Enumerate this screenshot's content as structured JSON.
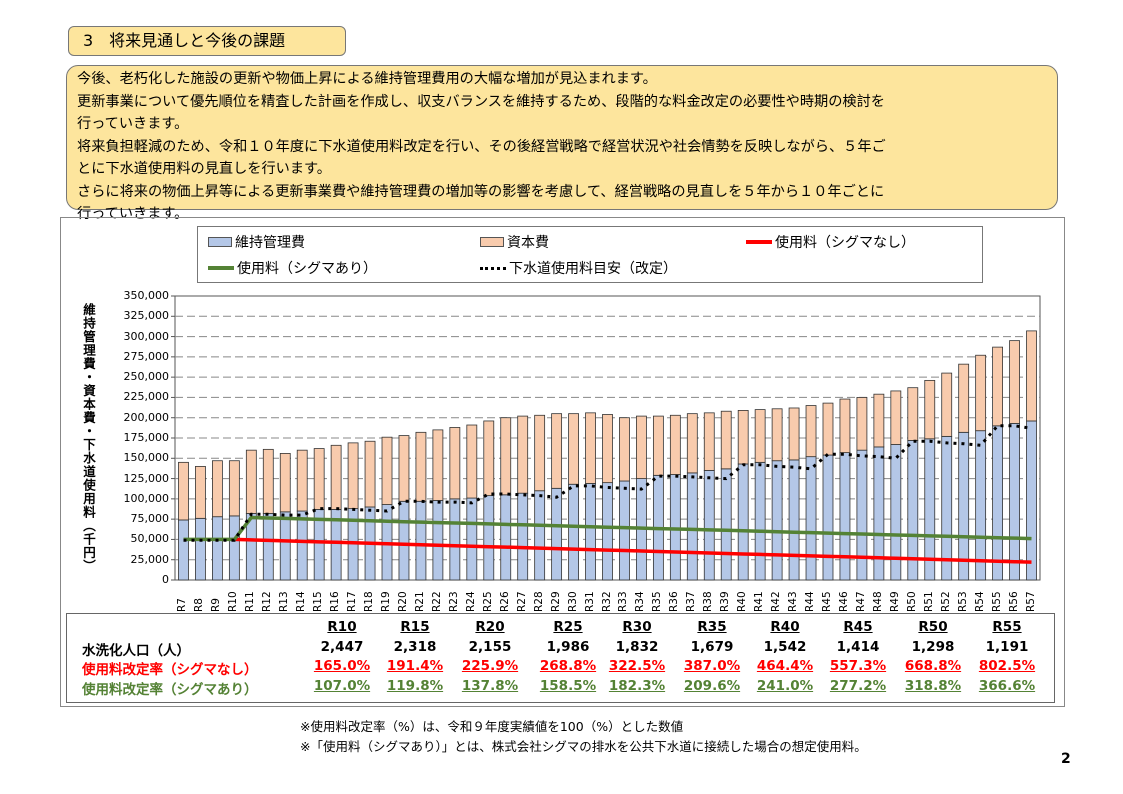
{
  "section_title": "3　将来見通しと今後の課題",
  "summary_lines": [
    "今後、老朽化した施設の更新や物価上昇による維持管理費用の大幅な増加が見込まれます。",
    "更新事業について優先順位を精査した計画を作成し、収支バランスを維持するため、段階的な料金改定の必要性や時期の検討を",
    "行っていきます。",
    "将来負担軽減のため、令和１０年度に下水道使用料改定を行い、その後経営戦略で経営状況や社会情勢を反映しながら、５年ご",
    "とに下水道使用料の見直しを行います。",
    "さらに将来の物価上昇等による更新事業費や維持管理費の増加等の影響を考慮して、経営戦略の見直しを５年から１０年ごとに",
    "行っていきます。"
  ],
  "chart_data": {
    "type": "bar",
    "stacked": true,
    "ylabel": "維持管理費・資本費・下水道使用料（千円）",
    "ylim": [
      0,
      350000
    ],
    "yticks": [
      "0",
      "25,000",
      "50,000",
      "75,000",
      "100,000",
      "125,000",
      "150,000",
      "175,000",
      "200,000",
      "225,000",
      "250,000",
      "275,000",
      "300,000",
      "325,000",
      "350,000"
    ],
    "grid": "horizontal-dashed",
    "legend_placement": "top",
    "categories": [
      "R7",
      "R8",
      "R9",
      "R10",
      "R11",
      "R12",
      "R13",
      "R14",
      "R15",
      "R16",
      "R17",
      "R18",
      "R19",
      "R20",
      "R21",
      "R22",
      "R23",
      "R24",
      "R25",
      "R26",
      "R27",
      "R28",
      "R29",
      "R30",
      "R31",
      "R32",
      "R33",
      "R34",
      "R35",
      "R36",
      "R37",
      "R38",
      "R39",
      "R40",
      "R41",
      "R42",
      "R43",
      "R44",
      "R45",
      "R46",
      "R47",
      "R48",
      "R49",
      "R50",
      "R51",
      "R52",
      "R53",
      "R54",
      "R55",
      "R56",
      "R57"
    ],
    "bar_series": [
      {
        "name": "維持管理費",
        "color": "#b4c7e7",
        "values": [
          74000,
          76000,
          78000,
          79000,
          82000,
          82000,
          84000,
          85000,
          87000,
          87000,
          88000,
          90000,
          93000,
          97000,
          97000,
          98000,
          100000,
          101000,
          104000,
          105000,
          107000,
          110000,
          113000,
          118000,
          119000,
          120000,
          122000,
          125000,
          129000,
          130000,
          132000,
          135000,
          137000,
          143000,
          145000,
          147000,
          148000,
          152000,
          154000,
          157000,
          160000,
          164000,
          167000,
          172000,
          174000,
          177000,
          182000,
          184000,
          190000,
          193000,
          196000
        ]
      },
      {
        "name": "資本費",
        "color": "#f8cbad",
        "values": [
          71000,
          64000,
          69000,
          68000,
          78000,
          79000,
          72000,
          75000,
          75000,
          79000,
          81000,
          81000,
          83000,
          81000,
          85000,
          87000,
          88000,
          90000,
          92000,
          95000,
          95000,
          93000,
          92000,
          87000,
          87000,
          84000,
          78000,
          77000,
          73000,
          73000,
          73000,
          71000,
          71000,
          66000,
          65000,
          64000,
          64000,
          63000,
          64000,
          66000,
          65000,
          65000,
          66000,
          65000,
          72000,
          78000,
          84000,
          93000,
          97000,
          102000,
          111000
        ]
      }
    ],
    "line_series": [
      {
        "name": "使用料（シグマなし）",
        "color": "#ff0000",
        "style": "solid",
        "values": [
          null,
          null,
          null,
          50000,
          49400,
          48800,
          48200,
          47600,
          47000,
          46400,
          45800,
          45200,
          44600,
          44000,
          43400,
          42900,
          42300,
          41700,
          41100,
          40500,
          39900,
          39300,
          38700,
          38100,
          37500,
          36900,
          36300,
          35700,
          35100,
          34500,
          33900,
          33300,
          32700,
          32100,
          31500,
          30900,
          30300,
          29700,
          29100,
          28600,
          28000,
          27400,
          26800,
          26200,
          25600,
          25000,
          24400,
          23800,
          23200,
          22600,
          22000
        ]
      },
      {
        "name": "使用料（シグマあり）",
        "color": "#548235",
        "style": "solid",
        "values": [
          50000,
          50000,
          50000,
          50000,
          77000,
          76400,
          75900,
          75300,
          74700,
          74200,
          73600,
          73000,
          72500,
          71900,
          71300,
          70800,
          70200,
          69700,
          69100,
          68500,
          68000,
          67400,
          66800,
          66300,
          65700,
          65100,
          64600,
          64000,
          63400,
          62900,
          62300,
          61700,
          61200,
          60600,
          60100,
          59500,
          58900,
          58400,
          57800,
          57200,
          56700,
          56100,
          55500,
          55000,
          54400,
          53800,
          53300,
          52700,
          52100,
          51600,
          51000
        ]
      },
      {
        "name": "下水道使用料目安（改定）",
        "color": "#000000",
        "style": "dotted",
        "values": [
          49000,
          49000,
          49000,
          49000,
          81000,
          81000,
          80000,
          80000,
          88000,
          88000,
          87000,
          86000,
          85000,
          97000,
          97000,
          96000,
          96000,
          95000,
          106000,
          106000,
          105000,
          104000,
          102000,
          116000,
          116000,
          114000,
          113000,
          112000,
          128000,
          128000,
          127000,
          126000,
          125000,
          142000,
          142000,
          140000,
          139000,
          137000,
          155000,
          155000,
          153000,
          152000,
          150000,
          171000,
          171000,
          169000,
          168000,
          166000,
          190000,
          190000,
          187000
        ]
      }
    ]
  },
  "table": {
    "headers": [
      "R10",
      "R15",
      "R20",
      "R25",
      "R30",
      "R35",
      "R40",
      "R45",
      "R50",
      "R55"
    ],
    "rows": [
      {
        "label": "水洗化人口（人）",
        "color": "#000000",
        "values": [
          "2,447",
          "2,318",
          "2,155",
          "1,986",
          "1,832",
          "1,679",
          "1,542",
          "1,414",
          "1,298",
          "1,191"
        ]
      },
      {
        "label": "使用料改定率（シグマなし）",
        "color": "#ff0000",
        "values": [
          "165.0%",
          "191.4%",
          "225.9%",
          "268.8%",
          "322.5%",
          "387.0%",
          "464.4%",
          "557.3%",
          "668.8%",
          "802.5%"
        ]
      },
      {
        "label": "使用料改定率（シグマあり）",
        "color": "#548235",
        "values": [
          "107.0%",
          "119.8%",
          "137.8%",
          "158.5%",
          "182.3%",
          "209.6%",
          "241.0%",
          "277.2%",
          "318.8%",
          "366.6%"
        ]
      }
    ]
  },
  "notes": [
    "※使用料改定率（%）は、令和９年度実績値を100（%）とした数値",
    "※「使用料（シグマあり）」とは、株式会社シグマの排水を公共下水道に接続した場合の想定使用料。"
  ],
  "page_number": "2"
}
